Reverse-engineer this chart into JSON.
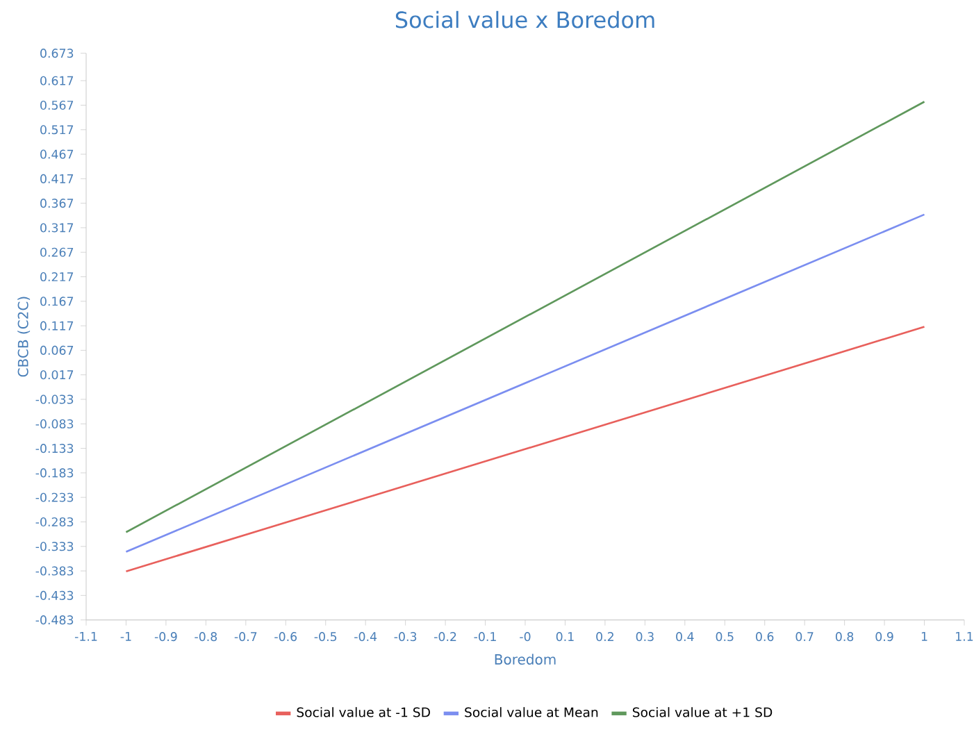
{
  "chart_data": {
    "type": "line",
    "title": "Social value x Boredom",
    "xlabel": "Boredom",
    "ylabel": "CBCB (C2C)",
    "x": [
      -1,
      1
    ],
    "series": [
      {
        "name": "Social value at -1 SD",
        "color": "#e8605c",
        "values": [
          -0.384,
          0.115
        ]
      },
      {
        "name": "Social value at Mean",
        "color": "#7b8ef0",
        "values": [
          -0.344,
          0.344
        ]
      },
      {
        "name": "Social value at +1 SD",
        "color": "#5f985c",
        "values": [
          -0.304,
          0.574
        ]
      }
    ],
    "xlim": [
      -1.1,
      1.1
    ],
    "xticks": [
      -1.1,
      -1,
      -0.9,
      -0.8,
      -0.7,
      -0.6,
      -0.5,
      -0.4,
      -0.3,
      -0.2,
      -0.1,
      {
        "value": 0,
        "label": "-0"
      },
      0.1,
      0.2,
      0.3,
      0.4,
      0.5,
      0.6,
      0.7,
      0.8,
      0.9,
      1,
      1.1
    ],
    "ylim": [
      -0.483,
      0.673
    ],
    "yticks": [
      -0.483,
      -0.433,
      -0.383,
      -0.333,
      -0.283,
      -0.233,
      -0.183,
      -0.133,
      -0.083,
      -0.033,
      0.017,
      0.067,
      0.117,
      0.167,
      0.217,
      0.267,
      0.317,
      0.367,
      0.417,
      0.467,
      0.517,
      0.567,
      0.617,
      0.673
    ],
    "grid": false,
    "legend": "bottom",
    "marker": "none",
    "line_style": "solid"
  }
}
